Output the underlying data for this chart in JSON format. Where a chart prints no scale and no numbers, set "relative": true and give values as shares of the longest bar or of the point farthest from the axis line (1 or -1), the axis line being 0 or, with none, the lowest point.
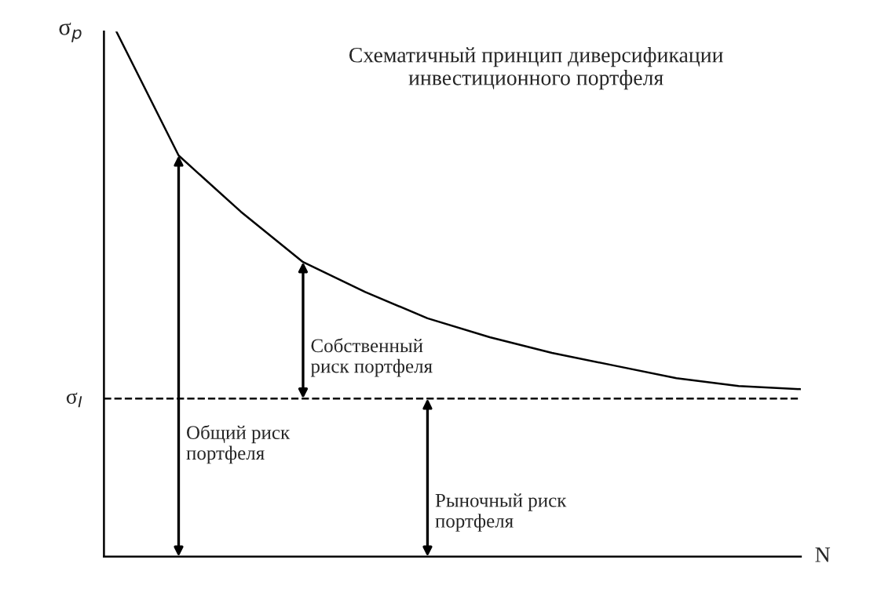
{
  "chart_data": {
    "type": "line",
    "title": "Схематичный принцип диверсификации\nинвестиционного портфеля",
    "xlabel": "N",
    "ylabel": "σ$_{p}$",
    "relative": true,
    "categories": [
      null,
      null,
      null,
      null,
      null,
      null,
      null,
      null,
      null,
      null,
      null,
      null
    ],
    "series": [
      {
        "color": "#000000",
        "values": [
          1.0,
          0.764,
          0.657,
          0.561,
          0.504,
          0.454,
          0.418,
          0.388,
          0.364,
          0.34,
          0.325,
          0.319
        ]
      }
    ],
    "ref_lines": [
      {
        "axis": "y",
        "value": 0.301,
        "label": "σ$_{I}$",
        "color": "#000000",
        "line_style": "dashed"
      }
    ],
    "annotations": [
      "Общий риск\nпортфеля",
      "Собственный\nриск портфеля",
      "Рыночный риск\nпортфеля"
    ],
    "grid": false,
    "legend": false,
    "marker": "none",
    "line_style": "solid"
  }
}
